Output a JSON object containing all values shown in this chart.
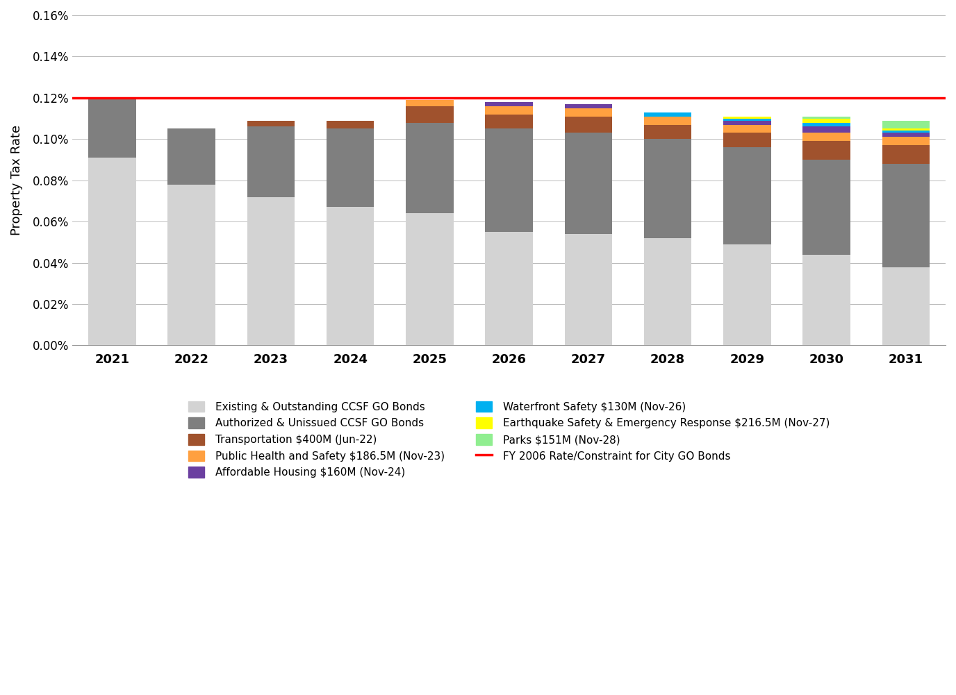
{
  "years": [
    2021,
    2022,
    2023,
    2024,
    2025,
    2026,
    2027,
    2028,
    2029,
    2030,
    2031
  ],
  "existing_outstanding": [
    0.091,
    0.078,
    0.072,
    0.067,
    0.064,
    0.055,
    0.054,
    0.052,
    0.049,
    0.044,
    0.038
  ],
  "authorized_unissued": [
    0.029,
    0.027,
    0.034,
    0.038,
    0.044,
    0.05,
    0.049,
    0.048,
    0.047,
    0.046,
    0.05
  ],
  "transportation": [
    0.0,
    0.0,
    0.003,
    0.004,
    0.008,
    0.007,
    0.008,
    0.007,
    0.007,
    0.009,
    0.009
  ],
  "public_health": [
    0.0,
    0.0,
    0.0,
    0.0,
    0.003,
    0.004,
    0.004,
    0.004,
    0.004,
    0.004,
    0.004
  ],
  "affordable_housing": [
    0.0,
    0.0,
    0.0,
    0.0,
    0.0,
    0.002,
    0.002,
    0.0,
    0.002,
    0.003,
    0.002
  ],
  "waterfront_safety": [
    0.0,
    0.0,
    0.0,
    0.0,
    0.0,
    0.0,
    0.0,
    0.002,
    0.001,
    0.002,
    0.001
  ],
  "earthquake_safety": [
    0.0,
    0.0,
    0.0,
    0.0,
    0.0,
    0.0,
    0.0,
    0.0,
    0.001,
    0.002,
    0.001
  ],
  "parks": [
    0.0,
    0.0,
    0.0,
    0.0,
    0.0,
    0.0,
    0.0,
    0.0,
    0.0,
    0.001,
    0.004
  ],
  "constraint_value": 0.12,
  "colors": {
    "existing_outstanding": "#D3D3D3",
    "authorized_unissued": "#7F7F7F",
    "transportation": "#A0522D",
    "public_health": "#FFA040",
    "affordable_housing": "#6B3FA0",
    "waterfront_safety": "#00B0F0",
    "earthquake_safety": "#FFFF00",
    "parks": "#90EE90",
    "constraint_line": "#FF0000"
  },
  "legend_labels": {
    "existing_outstanding": "Existing & Outstanding CCSF GO Bonds",
    "authorized_unissued": "Authorized & Unissued CCSF GO Bonds",
    "transportation": "Transportation $400M (Jun-22)",
    "public_health": "Public Health and Safety $186.5M (Nov-23)",
    "affordable_housing": "Affordable Housing $160M (Nov-24)",
    "waterfront_safety": "Waterfront Safety $130M (Nov-26)",
    "earthquake_safety": "Earthquake Safety & Emergency Response $216.5M (Nov-27)",
    "parks": "Parks $151M (Nov-28)",
    "constraint_line": "FY 2006 Rate/Constraint for City GO Bonds"
  },
  "ylabel": "Property Tax Rate",
  "ylim": [
    0.0,
    0.16
  ],
  "yticks": [
    0.0,
    0.02,
    0.04,
    0.06,
    0.08,
    0.1,
    0.12,
    0.14,
    0.16
  ],
  "ytick_labels": [
    "0.00%",
    "0.02%",
    "0.04%",
    "0.06%",
    "0.08%",
    "0.10%",
    "0.12%",
    "0.14%",
    "0.16%"
  ],
  "background_color": "#FFFFFF",
  "col1_keys": [
    "existing_outstanding",
    "transportation",
    "affordable_housing",
    "earthquake_safety",
    "constraint_line"
  ],
  "col2_keys": [
    "authorized_unissued",
    "public_health",
    "waterfront_safety",
    "parks"
  ]
}
